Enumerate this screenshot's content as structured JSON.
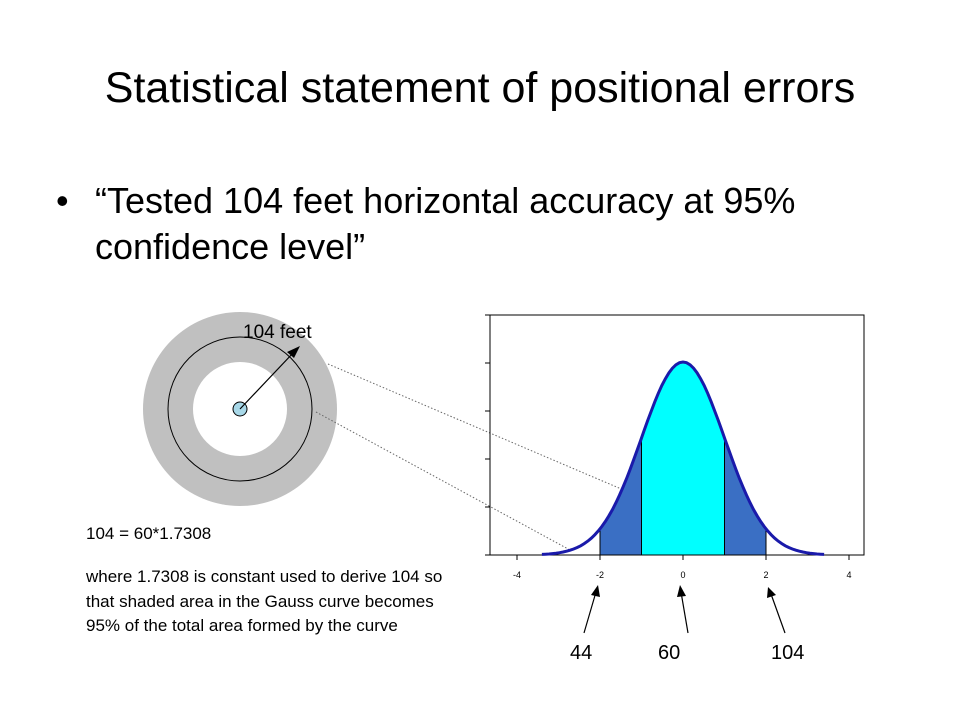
{
  "slide": {
    "title": "Statistical statement of positional errors",
    "bullet": {
      "marker": "•",
      "text": "“Tested 104 feet horizontal accuracy at 95% confidence level”"
    }
  },
  "circle_diagram": {
    "radius_label": "104 feet"
  },
  "note": {
    "formula": "104 = 60*1.7308",
    "explanation": "where 1.7308 is constant used to derive 104 so that shaded area in the Gauss curve becomes 95% of the total area formed by the curve"
  },
  "chart_data": {
    "type": "area",
    "x_ticks": [
      "-4",
      "-2",
      "0",
      "2",
      "4"
    ],
    "xlim": [
      -4,
      4
    ],
    "shaded_range": [
      -2,
      2
    ],
    "center_range": [
      -1,
      1
    ],
    "colors": {
      "center_fill": "#00ffff",
      "tail_fill": "#3a6fc4",
      "curve": "#1a1aaa",
      "ring": "#c0c0c0",
      "center_point": "#a8d8e8"
    }
  },
  "value_labels": [
    "44",
    "60",
    "104"
  ]
}
